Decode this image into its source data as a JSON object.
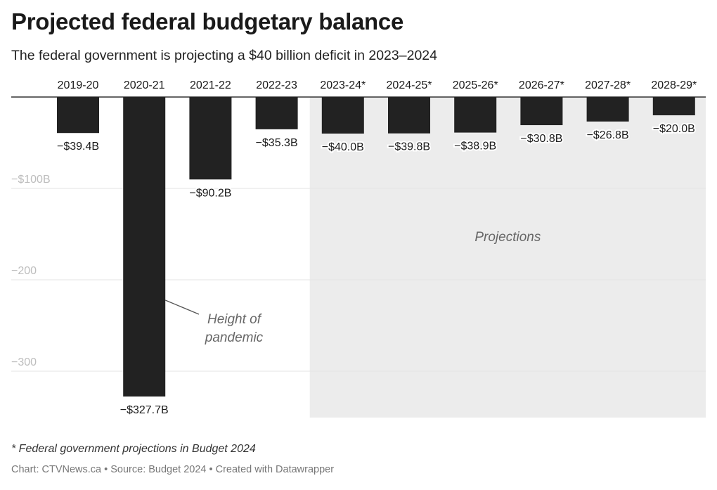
{
  "title": "Projected federal budgetary balance",
  "subtitle": "The federal government is projecting a $40 billion deficit in 2023–2024",
  "footnote": "* Federal government projections in Budget 2024",
  "credits": "Chart: CTVNews.ca • Source: Budget 2024 • Created with Datawrapper",
  "colors": {
    "bar": "#222222",
    "projection_bg": "#ececec",
    "grid": "#e3e3e3",
    "axis": "#333333"
  },
  "chart_data": {
    "type": "bar",
    "categories": [
      "2019-20",
      "2020-21",
      "2021-22",
      "2022-23",
      "2023-24*",
      "2024-25*",
      "2025-26*",
      "2026-27*",
      "2027-28*",
      "2028-29*"
    ],
    "values": [
      -39.4,
      -327.7,
      -90.2,
      -35.3,
      -40.0,
      -39.8,
      -38.9,
      -30.8,
      -26.8,
      -20.0
    ],
    "value_labels": [
      "−$39.4B",
      "−$327.7B",
      "−$90.2B",
      "−$35.3B",
      "−$40.0B",
      "−$39.8B",
      "−$38.9B",
      "−$30.8B",
      "−$26.8B",
      "−$20.0B"
    ],
    "y_ticks": [
      {
        "value": -100,
        "label": "−$100B"
      },
      {
        "value": -200,
        "label": "−200"
      },
      {
        "value": -300,
        "label": "−300"
      }
    ],
    "ylim": [
      -350,
      0
    ],
    "grid": true,
    "projection_start_index": 4,
    "annotations": {
      "projections": "Projections",
      "pandemic_line1": "Height of",
      "pandemic_line2": "pandemic"
    }
  }
}
